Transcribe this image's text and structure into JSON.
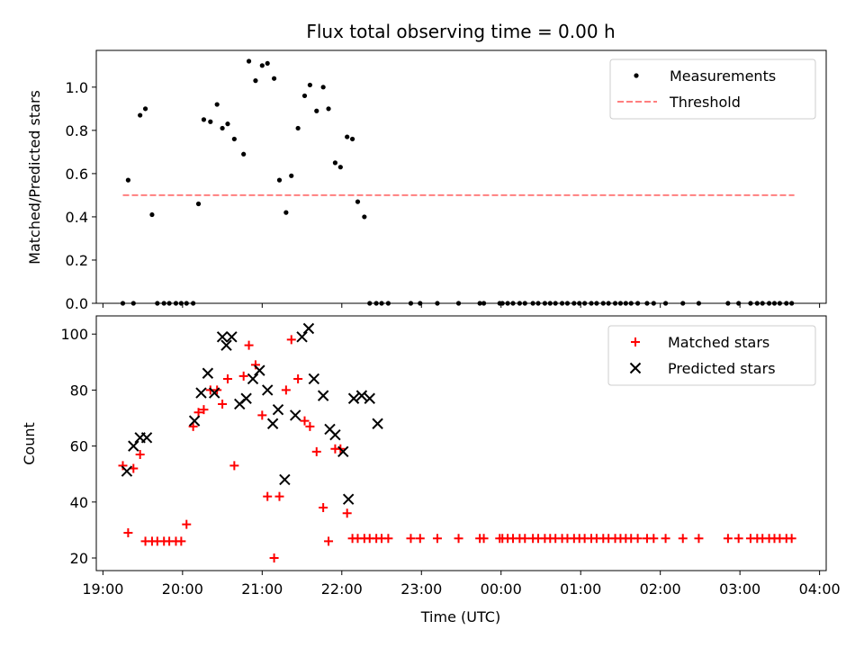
{
  "chart_data": [
    {
      "type": "scatter",
      "title": "Flux total observing time = 0.00 h",
      "xlabel": "",
      "ylabel": "Matched/Predicted stars",
      "ylim": [
        0,
        1.17
      ],
      "yticks": [
        0.0,
        0.2,
        0.4,
        0.6,
        0.8,
        1.0
      ],
      "ytick_labels": [
        "0.0",
        "0.2",
        "0.4",
        "0.6",
        "0.8",
        "1.0"
      ],
      "xlim": [
        "18:55",
        "04:05"
      ],
      "xticks": [
        "19:00",
        "20:00",
        "21:00",
        "22:00",
        "23:00",
        "00:00",
        "01:00",
        "02:00",
        "03:00",
        "04:00"
      ],
      "legend_position": "upper-right",
      "legend": [
        {
          "name": "Measurements",
          "marker": "dot",
          "color": "#000000"
        },
        {
          "name": "Threshold",
          "style": "dashed",
          "color": "#ff7f7f"
        }
      ],
      "threshold": {
        "name": "Threshold",
        "y": 0.5,
        "x_start": "19:15",
        "x_end": "03:41",
        "color": "#ff7f7f"
      },
      "series": [
        {
          "name": "Measurements",
          "color": "#000000",
          "x": [
            "19:15",
            "19:19",
            "19:23",
            "19:28",
            "19:32",
            "19:37",
            "19:41",
            "19:46",
            "19:50",
            "19:55",
            "19:59",
            "20:03",
            "20:08",
            "20:12",
            "20:16",
            "20:21",
            "20:26",
            "20:30",
            "20:34",
            "20:39",
            "20:46",
            "20:50",
            "20:55",
            "21:00",
            "21:04",
            "21:09",
            "21:13",
            "21:18",
            "21:22",
            "21:27",
            "21:32",
            "21:36",
            "21:41",
            "21:46",
            "21:50",
            "21:55",
            "21:59",
            "22:04",
            "22:08",
            "22:12",
            "22:17",
            "22:21",
            "22:26",
            "22:30",
            "22:35",
            "22:52",
            "22:59",
            "23:12",
            "23:28",
            "23:44",
            "23:47",
            "23:59",
            "00:01",
            "00:05",
            "00:09",
            "00:14",
            "00:18",
            "00:24",
            "00:28",
            "00:33",
            "00:37",
            "00:41",
            "00:46",
            "00:50",
            "00:55",
            "00:59",
            "01:03",
            "01:08",
            "01:12",
            "01:17",
            "01:21",
            "01:26",
            "01:30",
            "01:34",
            "01:38",
            "01:43",
            "01:50",
            "01:55",
            "02:04",
            "02:17",
            "02:29",
            "02:51",
            "02:59",
            "03:08",
            "03:13",
            "03:17",
            "03:22",
            "03:26",
            "03:30",
            "03:35",
            "03:39"
          ],
          "y": [
            0.0,
            0.57,
            0.0,
            0.87,
            0.9,
            0.41,
            0.0,
            0.0,
            0.0,
            0.0,
            0.0,
            0.0,
            0.0,
            0.46,
            0.85,
            0.84,
            0.92,
            0.81,
            0.83,
            0.76,
            0.69,
            1.12,
            1.03,
            1.1,
            1.11,
            1.04,
            0.57,
            0.42,
            0.59,
            0.81,
            0.96,
            1.01,
            0.89,
            1.0,
            0.9,
            0.65,
            0.63,
            0.77,
            0.76,
            0.47,
            0.4,
            0.0,
            0.0,
            0.0,
            0.0,
            0.0,
            0.0,
            0.0,
            0.0,
            0.0,
            0.0,
            0.0,
            0.0,
            0.0,
            0.0,
            0.0,
            0.0,
            0.0,
            0.0,
            0.0,
            0.0,
            0.0,
            0.0,
            0.0,
            0.0,
            0.0,
            0.0,
            0.0,
            0.0,
            0.0,
            0.0,
            0.0,
            0.0,
            0.0,
            0.0,
            0.0,
            0.0,
            0.0,
            0.0,
            0.0,
            0.0,
            0.0,
            0.0,
            0.0,
            0.0,
            0.0,
            0.0,
            0.0,
            0.0,
            0.0,
            0.0
          ]
        }
      ]
    },
    {
      "type": "scatter",
      "xlabel": "Time (UTC)",
      "ylabel": "Count",
      "ylim": [
        15.5,
        106.5
      ],
      "yticks": [
        20,
        40,
        60,
        80,
        100
      ],
      "ytick_labels": [
        "20",
        "40",
        "60",
        "80",
        "100"
      ],
      "xlim": [
        "18:55",
        "04:05"
      ],
      "xticks": [
        "19:00",
        "20:00",
        "21:00",
        "22:00",
        "23:00",
        "00:00",
        "01:00",
        "02:00",
        "03:00",
        "04:00"
      ],
      "xtick_labels": [
        "19:00",
        "20:00",
        "21:00",
        "22:00",
        "23:00",
        "00:00",
        "01:00",
        "02:00",
        "03:00",
        "04:00"
      ],
      "legend_position": "upper-right",
      "series": [
        {
          "name": "Matched stars",
          "marker": "plus",
          "color": "#ff0000",
          "x": [
            "19:15",
            "19:19",
            "19:23",
            "19:28",
            "19:32",
            "19:37",
            "19:41",
            "19:46",
            "19:50",
            "19:55",
            "19:59",
            "20:03",
            "20:08",
            "20:12",
            "20:16",
            "20:21",
            "20:26",
            "20:30",
            "20:34",
            "20:39",
            "20:46",
            "20:50",
            "20:55",
            "21:00",
            "21:04",
            "21:09",
            "21:13",
            "21:18",
            "21:22",
            "21:27",
            "21:32",
            "21:36",
            "21:41",
            "21:46",
            "21:50",
            "21:55",
            "21:59",
            "22:04",
            "22:08",
            "22:12",
            "22:17",
            "22:21",
            "22:26",
            "22:30",
            "22:35",
            "22:52",
            "22:59",
            "23:12",
            "23:28",
            "23:44",
            "23:47",
            "23:59",
            "00:01",
            "00:05",
            "00:09",
            "00:14",
            "00:18",
            "00:24",
            "00:28",
            "00:33",
            "00:37",
            "00:41",
            "00:46",
            "00:50",
            "00:55",
            "00:59",
            "01:03",
            "01:08",
            "01:12",
            "01:17",
            "01:21",
            "01:26",
            "01:30",
            "01:34",
            "01:38",
            "01:43",
            "01:50",
            "01:55",
            "02:04",
            "02:17",
            "02:29",
            "02:51",
            "02:59",
            "03:08",
            "03:13",
            "03:17",
            "03:22",
            "03:26",
            "03:30",
            "03:35",
            "03:39"
          ],
          "y": [
            53,
            29,
            52,
            57,
            26,
            26,
            26,
            26,
            26,
            26,
            26,
            32,
            67,
            72,
            73,
            80,
            80,
            75,
            84,
            53,
            85,
            96,
            89,
            71,
            42,
            20,
            42,
            80,
            98,
            84,
            69,
            67,
            58,
            38,
            26,
            59,
            59,
            36,
            27,
            27,
            27,
            27,
            27,
            27,
            27,
            27,
            27,
            27,
            27,
            27,
            27,
            27,
            27,
            27,
            27,
            27,
            27,
            27,
            27,
            27,
            27,
            27,
            27,
            27,
            27,
            27,
            27,
            27,
            27,
            27,
            27,
            27,
            27,
            27,
            27,
            27,
            27,
            27,
            27,
            27,
            27,
            27,
            27,
            27,
            27,
            27,
            27,
            27,
            27,
            27,
            27
          ]
        },
        {
          "name": "Predicted stars",
          "marker": "x",
          "color": "#000000",
          "x": [
            "19:18",
            "19:23",
            "19:28",
            "19:33",
            "20:09",
            "20:14",
            "20:19",
            "20:24",
            "20:30",
            "20:33",
            "20:37",
            "20:43",
            "20:48",
            "20:53",
            "20:58",
            "21:04",
            "21:08",
            "21:12",
            "21:17",
            "21:25",
            "21:30",
            "21:35",
            "21:39",
            "21:46",
            "21:51",
            "21:55",
            "22:01",
            "22:05",
            "22:09",
            "22:15",
            "22:21",
            "22:27"
          ],
          "y": [
            51,
            60,
            63,
            63,
            69,
            79,
            86,
            79,
            99,
            96,
            99,
            75,
            77,
            84,
            87,
            80,
            68,
            73,
            48,
            71,
            99,
            102,
            84,
            78,
            66,
            64,
            58,
            41,
            77,
            78,
            77,
            68
          ]
        }
      ]
    }
  ]
}
